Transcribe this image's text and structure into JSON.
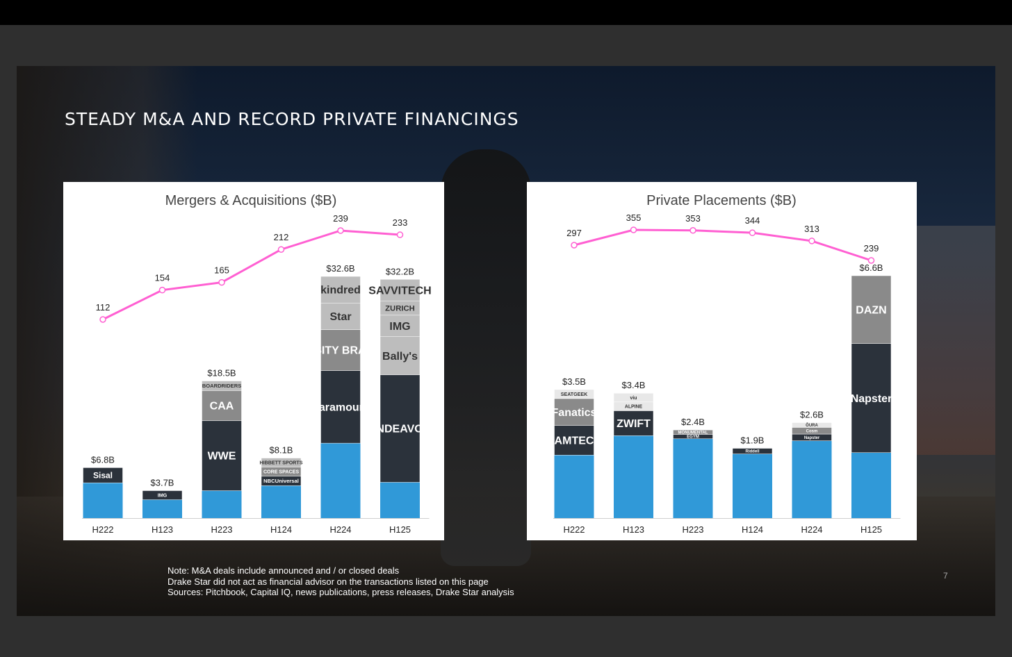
{
  "slide": {
    "title": "STEADY M&A AND RECORD PRIVATE FINANCINGS",
    "notes": [
      "Note: M&A deals include announced and / or closed deals",
      "Drake Star did not act as financial advisor on the transactions listed on this page",
      "Sources: Pitchbook, Capital IQ, news publications, press releases, Drake Star analysis"
    ],
    "page_number": "7"
  },
  "colors": {
    "line": "#ff5fd2",
    "base_blue": "#3099d8",
    "dark_navy": "#2b323b",
    "mid_gray": "#8a8a8a",
    "light_gray": "#bdbdbd",
    "axis": "#d0d0d0"
  },
  "chart_data": [
    {
      "type": "bar",
      "title": "Mergers & Acquisitions ($B)",
      "categories": [
        "H222",
        "H123",
        "H223",
        "H124",
        "H224",
        "H125"
      ],
      "series": [
        {
          "values": [
            6.8,
            3.7,
            18.5,
            8.1,
            32.6,
            32.2
          ],
          "labels": [
            "$6.8B",
            "$3.7B",
            "$18.5B",
            "$8.1B",
            "$32.6B",
            "$32.2B"
          ]
        }
      ],
      "deal_counts": [
        112,
        154,
        165,
        212,
        239,
        233
      ],
      "segments": [
        [
          {
            "logo": "Sisal",
            "color": "#2b323b",
            "share": 0.3
          }
        ],
        [
          {
            "logo": "IMG",
            "color": "#2b323b",
            "share": 0.33
          }
        ],
        [
          {
            "logo": "WWE",
            "color": "#2b323b",
            "share": 0.51
          },
          {
            "logo": "CAA",
            "color": "#8a8a8a",
            "share": 0.22
          },
          {
            "logo": "BOARDRIDERS",
            "color": "#bdbdbd",
            "share": 0.07
          }
        ],
        [
          {
            "logo": "NBCUniversal",
            "color": "#2b323b",
            "share": 0.16
          },
          {
            "logo": "CORE SPACES",
            "color": "#8a8a8a",
            "share": 0.15
          },
          {
            "logo": "HIBBETT SPORTS",
            "color": "#bdbdbd",
            "share": 0.15
          }
        ],
        [
          {
            "logo": "Paramount",
            "color": "#2b323b",
            "share": 0.3
          },
          {
            "logo": "VARSITY BRANDS",
            "color": "#8a8a8a",
            "share": 0.17
          },
          {
            "logo": "Star",
            "color": "#bdbdbd",
            "share": 0.11
          },
          {
            "logo": "kindred",
            "color": "#bdbdbd",
            "share": 0.11
          }
        ],
        [
          {
            "logo": "ENDEAVOR",
            "color": "#2b323b",
            "share": 0.45
          },
          {
            "logo": "Bally's",
            "color": "#bdbdbd",
            "share": 0.16
          },
          {
            "logo": "IMG",
            "color": "#bdbdbd",
            "share": 0.09
          },
          {
            "logo": "ZURICH",
            "color": "#bdbdbd",
            "share": 0.06
          },
          {
            "logo": "SAVVITECH",
            "color": "#bdbdbd",
            "share": 0.09
          }
        ]
      ]
    },
    {
      "type": "bar",
      "title": "Private Placements ($B)",
      "categories": [
        "H222",
        "H123",
        "H223",
        "H124",
        "H224",
        "H125"
      ],
      "series": [
        {
          "values": [
            3.5,
            3.4,
            2.4,
            1.9,
            2.6,
            6.6
          ],
          "labels": [
            "$3.5B",
            "$3.4B",
            "$2.4B",
            "$1.9B",
            "$2.6B",
            "$6.6B"
          ]
        }
      ],
      "deal_counts": [
        297,
        355,
        353,
        344,
        313,
        239
      ],
      "segments": [
        [
          {
            "logo": "BAMTECH",
            "color": "#2b323b",
            "share": 0.23
          },
          {
            "logo": "Fanatics",
            "color": "#8a8a8a",
            "share": 0.21
          },
          {
            "logo": "SEATGEEK",
            "color": "#e8e8e8",
            "share": 0.07
          }
        ],
        [
          {
            "logo": "ZWIFT",
            "color": "#2b323b",
            "share": 0.2
          },
          {
            "logo": "ALPINE",
            "color": "#e8e8e8",
            "share": 0.07
          },
          {
            "logo": "viu",
            "color": "#e8e8e8",
            "share": 0.07
          }
        ],
        [
          {
            "logo": "EGYM",
            "color": "#2b323b",
            "share": 0.05
          },
          {
            "logo": "MONUMENTAL",
            "color": "#8a8a8a",
            "share": 0.05
          }
        ],
        [
          {
            "logo": "Riddell",
            "color": "#2b323b",
            "share": 0.08
          }
        ],
        [
          {
            "logo": "Napster",
            "color": "#2b323b",
            "share": 0.07
          },
          {
            "logo": "Cosm",
            "color": "#8a8a8a",
            "share": 0.07
          },
          {
            "logo": "ŌURA",
            "color": "#e8e8e8",
            "share": 0.05
          }
        ],
        [
          {
            "logo": "Napster",
            "color": "#2b323b",
            "share": 0.45
          },
          {
            "logo": "DAZN",
            "color": "#8a8a8a",
            "share": 0.28
          }
        ]
      ]
    }
  ]
}
